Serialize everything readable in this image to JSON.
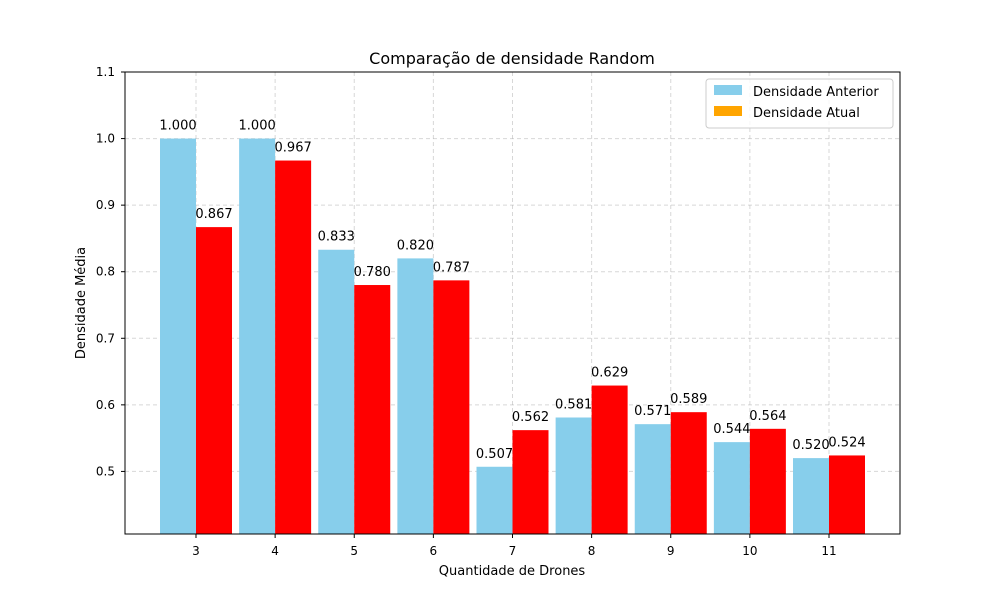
{
  "chart_data": {
    "type": "bar",
    "title": "Comparação de densidade Random",
    "xlabel": "Quantidade de Drones",
    "ylabel": "Densidade Média",
    "categories": [
      "3",
      "4",
      "5",
      "6",
      "7",
      "8",
      "9",
      "10",
      "11"
    ],
    "ylim": [
      0.406,
      1.1
    ],
    "yticks": [
      0.5,
      0.6,
      0.7,
      0.8,
      0.9,
      1.0,
      1.1
    ],
    "ytick_labels": [
      "0.5",
      "0.6",
      "0.7",
      "0.8",
      "0.9",
      "1.0",
      "1.1"
    ],
    "grid": true,
    "legend_position": "top-right",
    "series": [
      {
        "name": "Densidade Anterior",
        "color": "#87ceeb",
        "legend_color": "#87ceeb",
        "values": [
          1.0,
          1.0,
          0.833,
          0.82,
          0.507,
          0.581,
          0.571,
          0.544,
          0.52
        ],
        "labels": [
          "1.000",
          "1.000",
          "0.833",
          "0.820",
          "0.507",
          "0.581",
          "0.571",
          "0.544",
          "0.520"
        ]
      },
      {
        "name": "Densidade Atual",
        "color": "#ff0000",
        "legend_color": "#ffa500",
        "values": [
          0.867,
          0.967,
          0.78,
          0.787,
          0.562,
          0.629,
          0.589,
          0.564,
          0.524
        ],
        "labels": [
          "0.867",
          "0.967",
          "0.780",
          "0.787",
          "0.562",
          "0.629",
          "0.589",
          "0.564",
          "0.524"
        ]
      }
    ]
  }
}
